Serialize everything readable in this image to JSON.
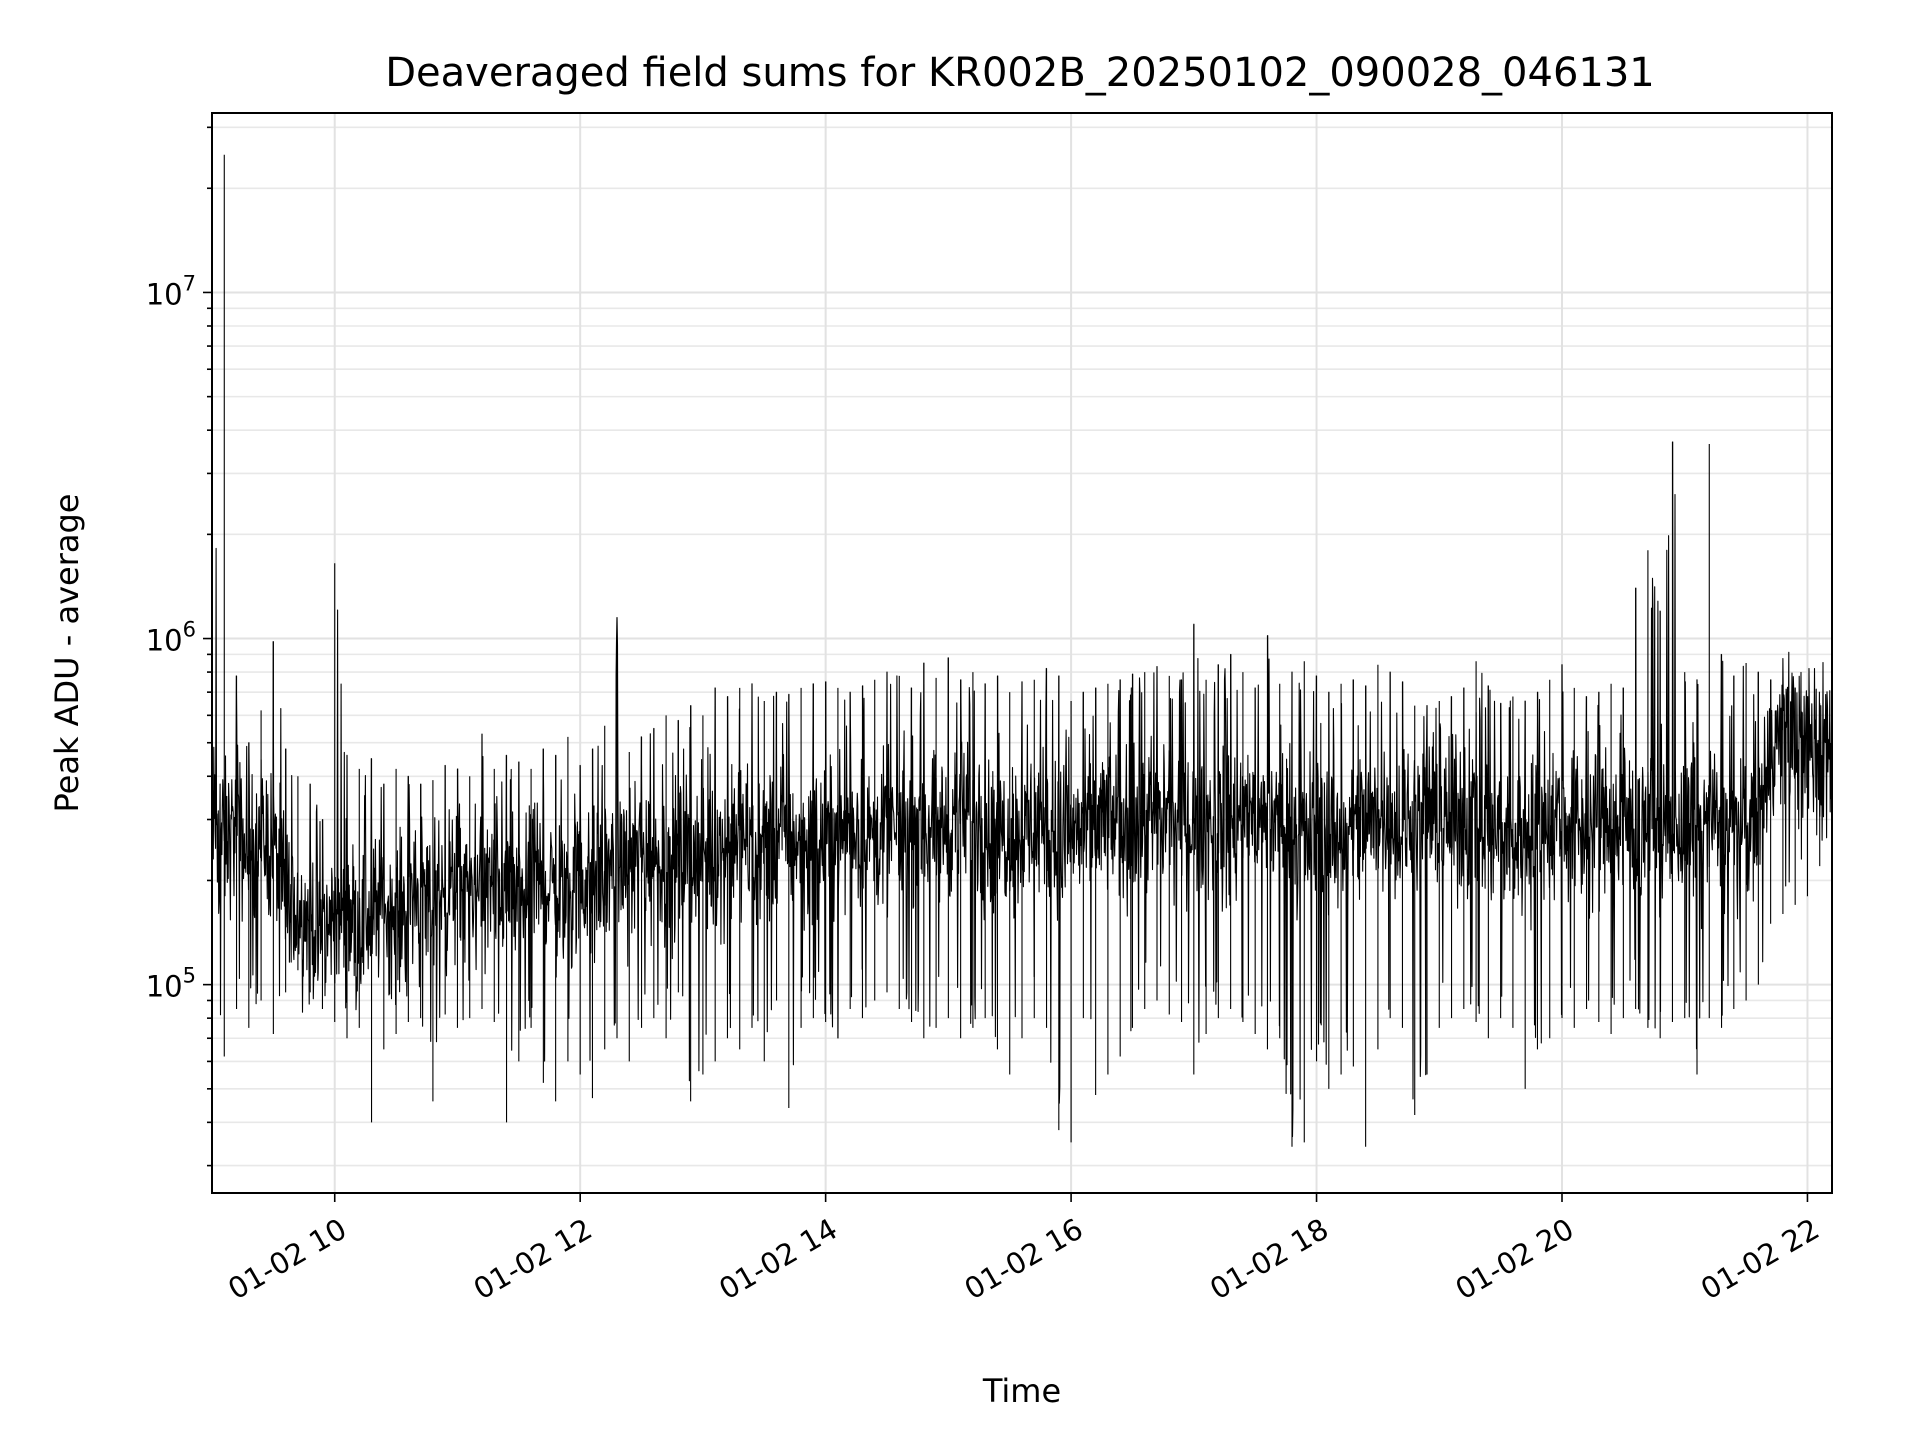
{
  "chart_data": {
    "type": "line",
    "title": "Deaveraged field sums for KR002B_20250102_090028_046131",
    "xlabel": "Time",
    "ylabel": "Peak ADU - average",
    "yscale": "log",
    "grid": true,
    "line_color": "#000000",
    "xlim": [
      "2025-01-02 09:00",
      "2025-01-02 22:12"
    ],
    "ylim": [
      25000,
      33000000
    ],
    "x_ticks": [
      {
        "value": "2025-01-02 10:00",
        "label": "01-02 10"
      },
      {
        "value": "2025-01-02 12:00",
        "label": "01-02 12"
      },
      {
        "value": "2025-01-02 14:00",
        "label": "01-02 14"
      },
      {
        "value": "2025-01-02 16:00",
        "label": "01-02 16"
      },
      {
        "value": "2025-01-02 18:00",
        "label": "01-02 18"
      },
      {
        "value": "2025-01-02 20:00",
        "label": "01-02 20"
      },
      {
        "value": "2025-01-02 22:00",
        "label": "01-02 22"
      }
    ],
    "y_ticks": [
      {
        "value": 100000,
        "base": "10",
        "exp": "5"
      },
      {
        "value": 1000000,
        "base": "10",
        "exp": "6"
      },
      {
        "value": 10000000,
        "base": "10",
        "exp": "7"
      }
    ],
    "series": [
      {
        "x": [
          "2025-01-02 09:00",
          "2025-01-02 09:06",
          "2025-01-02 09:12",
          "2025-01-02 09:18",
          "2025-01-02 09:24",
          "2025-01-02 09:30",
          "2025-01-02 09:36",
          "2025-01-02 09:42",
          "2025-01-02 09:48",
          "2025-01-02 09:54",
          "2025-01-02 10:00",
          "2025-01-02 10:06",
          "2025-01-02 10:12",
          "2025-01-02 10:18",
          "2025-01-02 10:24",
          "2025-01-02 10:30",
          "2025-01-02 10:36",
          "2025-01-02 10:42",
          "2025-01-02 10:48",
          "2025-01-02 10:54",
          "2025-01-02 11:00",
          "2025-01-02 11:06",
          "2025-01-02 11:12",
          "2025-01-02 11:18",
          "2025-01-02 11:24",
          "2025-01-02 11:30",
          "2025-01-02 11:36",
          "2025-01-02 11:42",
          "2025-01-02 11:48",
          "2025-01-02 11:54",
          "2025-01-02 12:00",
          "2025-01-02 12:06",
          "2025-01-02 12:12",
          "2025-01-02 12:18",
          "2025-01-02 12:24",
          "2025-01-02 12:30",
          "2025-01-02 12:36",
          "2025-01-02 12:42",
          "2025-01-02 12:48",
          "2025-01-02 12:54",
          "2025-01-02 13:00",
          "2025-01-02 13:06",
          "2025-01-02 13:12",
          "2025-01-02 13:18",
          "2025-01-02 13:24",
          "2025-01-02 13:30",
          "2025-01-02 13:36",
          "2025-01-02 13:42",
          "2025-01-02 13:48",
          "2025-01-02 13:54",
          "2025-01-02 14:00",
          "2025-01-02 14:06",
          "2025-01-02 14:12",
          "2025-01-02 14:18",
          "2025-01-02 14:24",
          "2025-01-02 14:30",
          "2025-01-02 14:36",
          "2025-01-02 14:42",
          "2025-01-02 14:48",
          "2025-01-02 14:54",
          "2025-01-02 15:00",
          "2025-01-02 15:06",
          "2025-01-02 15:12",
          "2025-01-02 15:18",
          "2025-01-02 15:24",
          "2025-01-02 15:30",
          "2025-01-02 15:36",
          "2025-01-02 15:42",
          "2025-01-02 15:48",
          "2025-01-02 15:54",
          "2025-01-02 16:00",
          "2025-01-02 16:06",
          "2025-01-02 16:12",
          "2025-01-02 16:18",
          "2025-01-02 16:24",
          "2025-01-02 16:30",
          "2025-01-02 16:36",
          "2025-01-02 16:42",
          "2025-01-02 16:48",
          "2025-01-02 16:54",
          "2025-01-02 17:00",
          "2025-01-02 17:06",
          "2025-01-02 17:12",
          "2025-01-02 17:18",
          "2025-01-02 17:24",
          "2025-01-02 17:30",
          "2025-01-02 17:36",
          "2025-01-02 17:42",
          "2025-01-02 17:48",
          "2025-01-02 17:54",
          "2025-01-02 18:00",
          "2025-01-02 18:06",
          "2025-01-02 18:12",
          "2025-01-02 18:18",
          "2025-01-02 18:24",
          "2025-01-02 18:30",
          "2025-01-02 18:36",
          "2025-01-02 18:42",
          "2025-01-02 18:48",
          "2025-01-02 18:54",
          "2025-01-02 19:00",
          "2025-01-02 19:06",
          "2025-01-02 19:12",
          "2025-01-02 19:18",
          "2025-01-02 19:24",
          "2025-01-02 19:30",
          "2025-01-02 19:36",
          "2025-01-02 19:42",
          "2025-01-02 19:48",
          "2025-01-02 19:54",
          "2025-01-02 20:00",
          "2025-01-02 20:06",
          "2025-01-02 20:12",
          "2025-01-02 20:18",
          "2025-01-02 20:24",
          "2025-01-02 20:30",
          "2025-01-02 20:36",
          "2025-01-02 20:42",
          "2025-01-02 20:48",
          "2025-01-02 20:54",
          "2025-01-02 21:00",
          "2025-01-02 21:06",
          "2025-01-02 21:12",
          "2025-01-02 21:18",
          "2025-01-02 21:24",
          "2025-01-02 21:30",
          "2025-01-02 21:36",
          "2025-01-02 21:42",
          "2025-01-02 21:48",
          "2025-01-02 21:54",
          "2025-01-02 22:00",
          "2025-01-02 22:06",
          "2025-01-02 22:12"
        ],
        "low": [
          80000,
          62000,
          85000,
          75000,
          90000,
          72000,
          95000,
          110000,
          95000,
          85000,
          78000,
          70000,
          75000,
          40000,
          65000,
          72000,
          78000,
          80000,
          46000,
          82000,
          75000,
          80000,
          85000,
          78000,
          40000,
          60000,
          75000,
          52000,
          46000,
          60000,
          55000,
          47000,
          65000,
          70000,
          60000,
          75000,
          80000,
          70000,
          95000,
          46000,
          55000,
          60000,
          70000,
          65000,
          75000,
          60000,
          90000,
          44000,
          75000,
          80000,
          78000,
          70000,
          85000,
          80000,
          90000,
          95000,
          85000,
          78000,
          70000,
          75000,
          80000,
          70000,
          75000,
          80000,
          65000,
          55000,
          70000,
          80000,
          75000,
          38000,
          35000,
          80000,
          48000,
          55000,
          62000,
          75000,
          85000,
          90000,
          82000,
          78000,
          55000,
          72000,
          80000,
          85000,
          78000,
          72000,
          65000,
          70000,
          34000,
          35000,
          60000,
          50000,
          55000,
          58000,
          34000,
          65000,
          80000,
          75000,
          42000,
          55000,
          75000,
          80000,
          85000,
          78000,
          70000,
          80000,
          75000,
          50000,
          65000,
          70000,
          80000,
          75000,
          85000,
          78000,
          72000,
          80000,
          85000,
          75000,
          70000,
          78000,
          80000,
          55000,
          80000,
          75000,
          85000,
          90000,
          100000,
          150000,
          160000,
          170000,
          180000,
          220000,
          260000
        ],
        "high": [
          650000,
          25000000,
          780000,
          500000,
          620000,
          980000,
          480000,
          400000,
          380000,
          300000,
          1650000,
          460000,
          420000,
          450000,
          380000,
          420000,
          400000,
          380000,
          390000,
          430000,
          420000,
          400000,
          530000,
          420000,
          460000,
          440000,
          420000,
          480000,
          460000,
          520000,
          430000,
          480000,
          560000,
          1150000,
          470000,
          520000,
          550000,
          600000,
          580000,
          640000,
          600000,
          720000,
          680000,
          720000,
          740000,
          660000,
          700000,
          690000,
          720000,
          740000,
          750000,
          720000,
          700000,
          730000,
          760000,
          800000,
          780000,
          720000,
          850000,
          770000,
          880000,
          760000,
          800000,
          740000,
          780000,
          700000,
          750000,
          760000,
          820000,
          780000,
          660000,
          700000,
          720000,
          740000,
          760000,
          790000,
          800000,
          830000,
          780000,
          760000,
          1100000,
          760000,
          840000,
          900000,
          800000,
          720000,
          1020000,
          740000,
          800000,
          860000,
          780000,
          700000,
          740000,
          760000,
          730000,
          840000,
          800000,
          750000,
          640000,
          640000,
          660000,
          680000,
          720000,
          860000,
          730000,
          650000,
          680000,
          660000,
          700000,
          760000,
          840000,
          720000,
          680000,
          700000,
          740000,
          720000,
          1400000,
          1800000,
          1200000,
          3700000,
          800000,
          760000,
          3650000,
          900000,
          780000,
          850000,
          800000,
          760000,
          700000,
          720000,
          680000,
          650000,
          760000
        ],
        "mid": [
          300000,
          260000,
          280000,
          230000,
          270000,
          250000,
          180000,
          160000,
          150000,
          140000,
          160000,
          170000,
          150000,
          160000,
          170000,
          150000,
          180000,
          190000,
          170000,
          180000,
          200000,
          190000,
          180000,
          200000,
          190000,
          180000,
          190000,
          200000,
          180000,
          190000,
          200000,
          190000,
          210000,
          230000,
          220000,
          240000,
          230000,
          220000,
          230000,
          240000,
          230000,
          240000,
          250000,
          260000,
          250000,
          240000,
          260000,
          270000,
          260000,
          250000,
          260000,
          270000,
          280000,
          270000,
          260000,
          270000,
          280000,
          290000,
          280000,
          270000,
          290000,
          300000,
          290000,
          280000,
          270000,
          280000,
          290000,
          280000,
          270000,
          260000,
          270000,
          280000,
          290000,
          300000,
          290000,
          280000,
          290000,
          300000,
          310000,
          300000,
          290000,
          300000,
          290000,
          280000,
          300000,
          310000,
          300000,
          290000,
          280000,
          270000,
          280000,
          270000,
          260000,
          270000,
          280000,
          300000,
          290000,
          280000,
          300000,
          310000,
          300000,
          290000,
          300000,
          310000,
          290000,
          280000,
          260000,
          270000,
          280000,
          290000,
          300000,
          290000,
          280000,
          300000,
          290000,
          280000,
          270000,
          280000,
          290000,
          280000,
          270000,
          290000,
          300000,
          280000,
          270000,
          290000,
          300000,
          450000,
          560000,
          520000,
          480000,
          500000,
          520000
        ]
      }
    ]
  }
}
